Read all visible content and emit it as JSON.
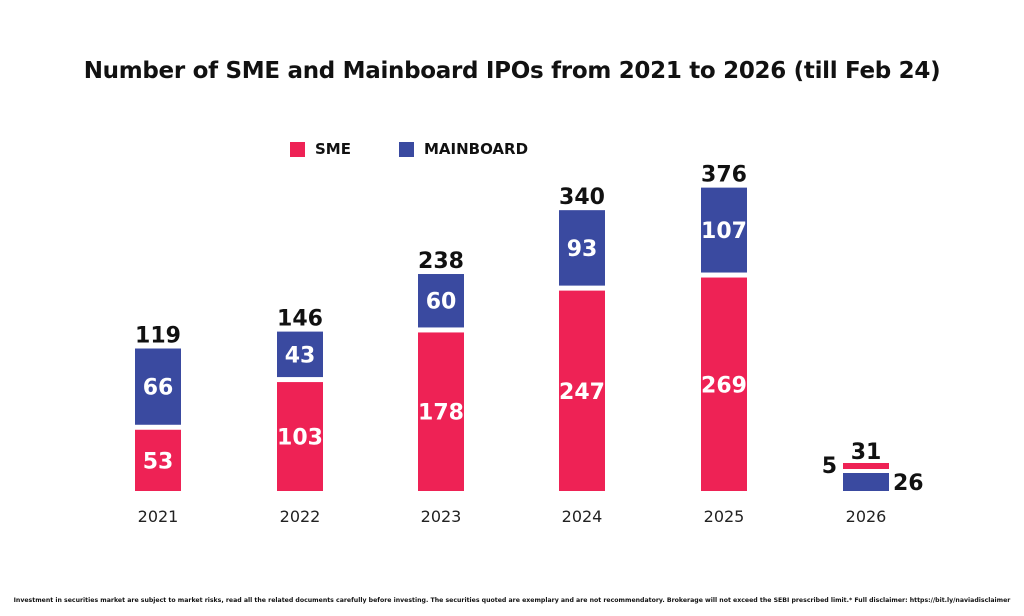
{
  "chart_data": {
    "type": "bar",
    "stacked": true,
    "title": "Number of SME and Mainboard IPOs from 2021 to 2026 (till Feb 24)",
    "xlabel": "",
    "ylabel": "",
    "categories": [
      "2021",
      "2022",
      "2023",
      "2024",
      "2025",
      "2026"
    ],
    "series": [
      {
        "name": "SME",
        "color": "#ee2255",
        "values": [
          53,
          103,
          178,
          247,
          269,
          5
        ]
      },
      {
        "name": "MAINBOARD",
        "color": "#3a4aa0",
        "values": [
          66,
          43,
          60,
          93,
          107,
          26
        ]
      }
    ],
    "totals": [
      119,
      146,
      238,
      340,
      376,
      31
    ],
    "legend_position": "top-left",
    "grid": false
  },
  "legend": {
    "sme": "SME",
    "mainboard": "MAINBOARD"
  },
  "footer": "Investment in securities market are subject to market risks, read all the related documents carefully before investing. The securities quoted are exemplary and are not recommendatory. Brokerage will not exceed the SEBI prescribed limit.* Full disclaimer: https://bit.ly/naviadisclaimer"
}
